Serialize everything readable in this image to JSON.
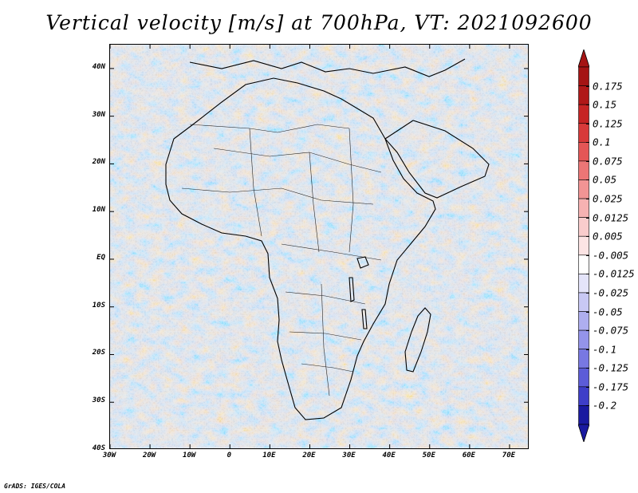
{
  "title": "Vertical velocity [m/s] at 700hPa, VT: 2021092600",
  "footer": "GrADS: IGES/COLA",
  "map": {
    "region": "Africa",
    "variable": "vertical velocity",
    "units": "m/s",
    "level": "700hPa",
    "valid_time": "2021092600",
    "lon_range": [
      -30,
      75
    ],
    "lat_range": [
      -40,
      45
    ],
    "lat_ticks": [
      {
        "value": 40,
        "label": "40N"
      },
      {
        "value": 30,
        "label": "30N"
      },
      {
        "value": 20,
        "label": "20N"
      },
      {
        "value": 10,
        "label": "10N"
      },
      {
        "value": 0,
        "label": "EQ"
      },
      {
        "value": -10,
        "label": "10S"
      },
      {
        "value": -20,
        "label": "20S"
      },
      {
        "value": -30,
        "label": "30S"
      },
      {
        "value": -40,
        "label": "40S"
      }
    ],
    "lon_ticks": [
      {
        "value": -30,
        "label": "30W"
      },
      {
        "value": -20,
        "label": "20W"
      },
      {
        "value": -10,
        "label": "10W"
      },
      {
        "value": 0,
        "label": "0"
      },
      {
        "value": 10,
        "label": "10E"
      },
      {
        "value": 20,
        "label": "20E"
      },
      {
        "value": 30,
        "label": "30E"
      },
      {
        "value": 40,
        "label": "40E"
      },
      {
        "value": 50,
        "label": "50E"
      },
      {
        "value": 60,
        "label": "60E"
      },
      {
        "value": 70,
        "label": "70E"
      }
    ]
  },
  "colorbar": {
    "levels": [
      {
        "label": "0.175",
        "color": "#b01818"
      },
      {
        "label": "0.15",
        "color": "#c62424"
      },
      {
        "label": "0.125",
        "color": "#d83a3a"
      },
      {
        "label": "0.1",
        "color": "#e45656"
      },
      {
        "label": "0.075",
        "color": "#ec7676"
      },
      {
        "label": "0.05",
        "color": "#f29494"
      },
      {
        "label": "0.025",
        "color": "#f6b2b2"
      },
      {
        "label": "0.0125",
        "color": "#f9cccc"
      },
      {
        "label": "0.005",
        "color": "#fce4e4"
      },
      {
        "label": "-0.005",
        "color": "#ffffff"
      },
      {
        "label": "-0.0125",
        "color": "#e4e4fa"
      },
      {
        "label": "-0.025",
        "color": "#c8c8f4"
      },
      {
        "label": "-0.05",
        "color": "#aeaeef"
      },
      {
        "label": "-0.075",
        "color": "#9494ea"
      },
      {
        "label": "-0.1",
        "color": "#7878e2"
      },
      {
        "label": "-0.125",
        "color": "#5c5cd8"
      },
      {
        "label": "-0.175",
        "color": "#3e3ec8"
      },
      {
        "label": "-0.2",
        "color": "#2424b4"
      }
    ],
    "top_cap_color": "#a51414",
    "bottom_cap_color": "#1a1aa0"
  }
}
